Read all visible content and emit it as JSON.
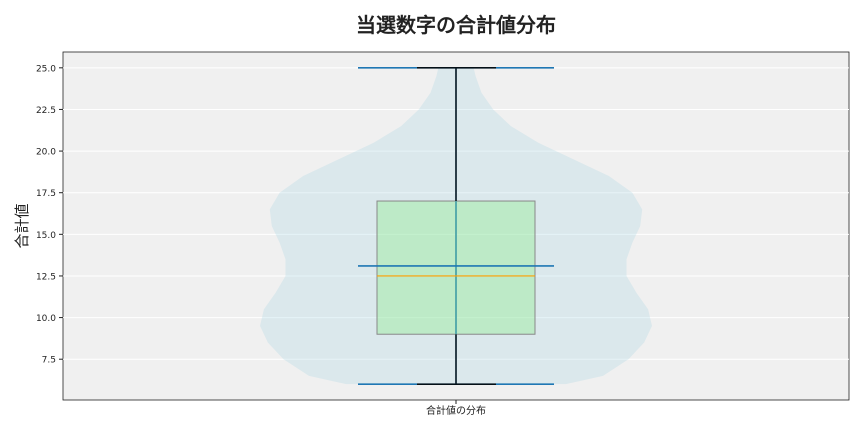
{
  "chart_data": {
    "type": "violin+box",
    "title": "当選数字の合計値分布",
    "xlabel": "",
    "ylabel": "合計値",
    "categories": [
      "合計値の分布"
    ],
    "ylim": [
      5.05,
      25.95
    ],
    "yticks": [
      "7.5",
      "10.0",
      "12.5",
      "15.0",
      "17.5",
      "20.0",
      "22.5",
      "25.0"
    ],
    "grid": true,
    "box": {
      "min": 6,
      "q1": 9.0,
      "median": 12.5,
      "q3": 17.0,
      "max": 25
    },
    "mean": 13.1,
    "violin_density": [
      [
        6,
        0.56
      ],
      [
        6.5,
        0.75
      ],
      [
        7.5,
        0.88
      ],
      [
        8.5,
        0.96
      ],
      [
        9.5,
        1.0
      ],
      [
        10.5,
        0.98
      ],
      [
        11.5,
        0.92
      ],
      [
        12.5,
        0.87
      ],
      [
        13.5,
        0.87
      ],
      [
        14.5,
        0.9
      ],
      [
        15.5,
        0.94
      ],
      [
        16.5,
        0.95
      ],
      [
        17.5,
        0.9
      ],
      [
        18.5,
        0.78
      ],
      [
        19.5,
        0.6
      ],
      [
        20.5,
        0.42
      ],
      [
        21.5,
        0.28
      ],
      [
        22.5,
        0.19
      ],
      [
        23.5,
        0.13
      ],
      [
        24.5,
        0.1
      ],
      [
        25,
        0.09
      ]
    ],
    "colors": {
      "violin": "#add8e6",
      "box_fill": "#90ee90",
      "median": "#ff9f00",
      "lines": "#1f77b4",
      "whisker": "#000000",
      "background": "#f0f0f0"
    }
  }
}
